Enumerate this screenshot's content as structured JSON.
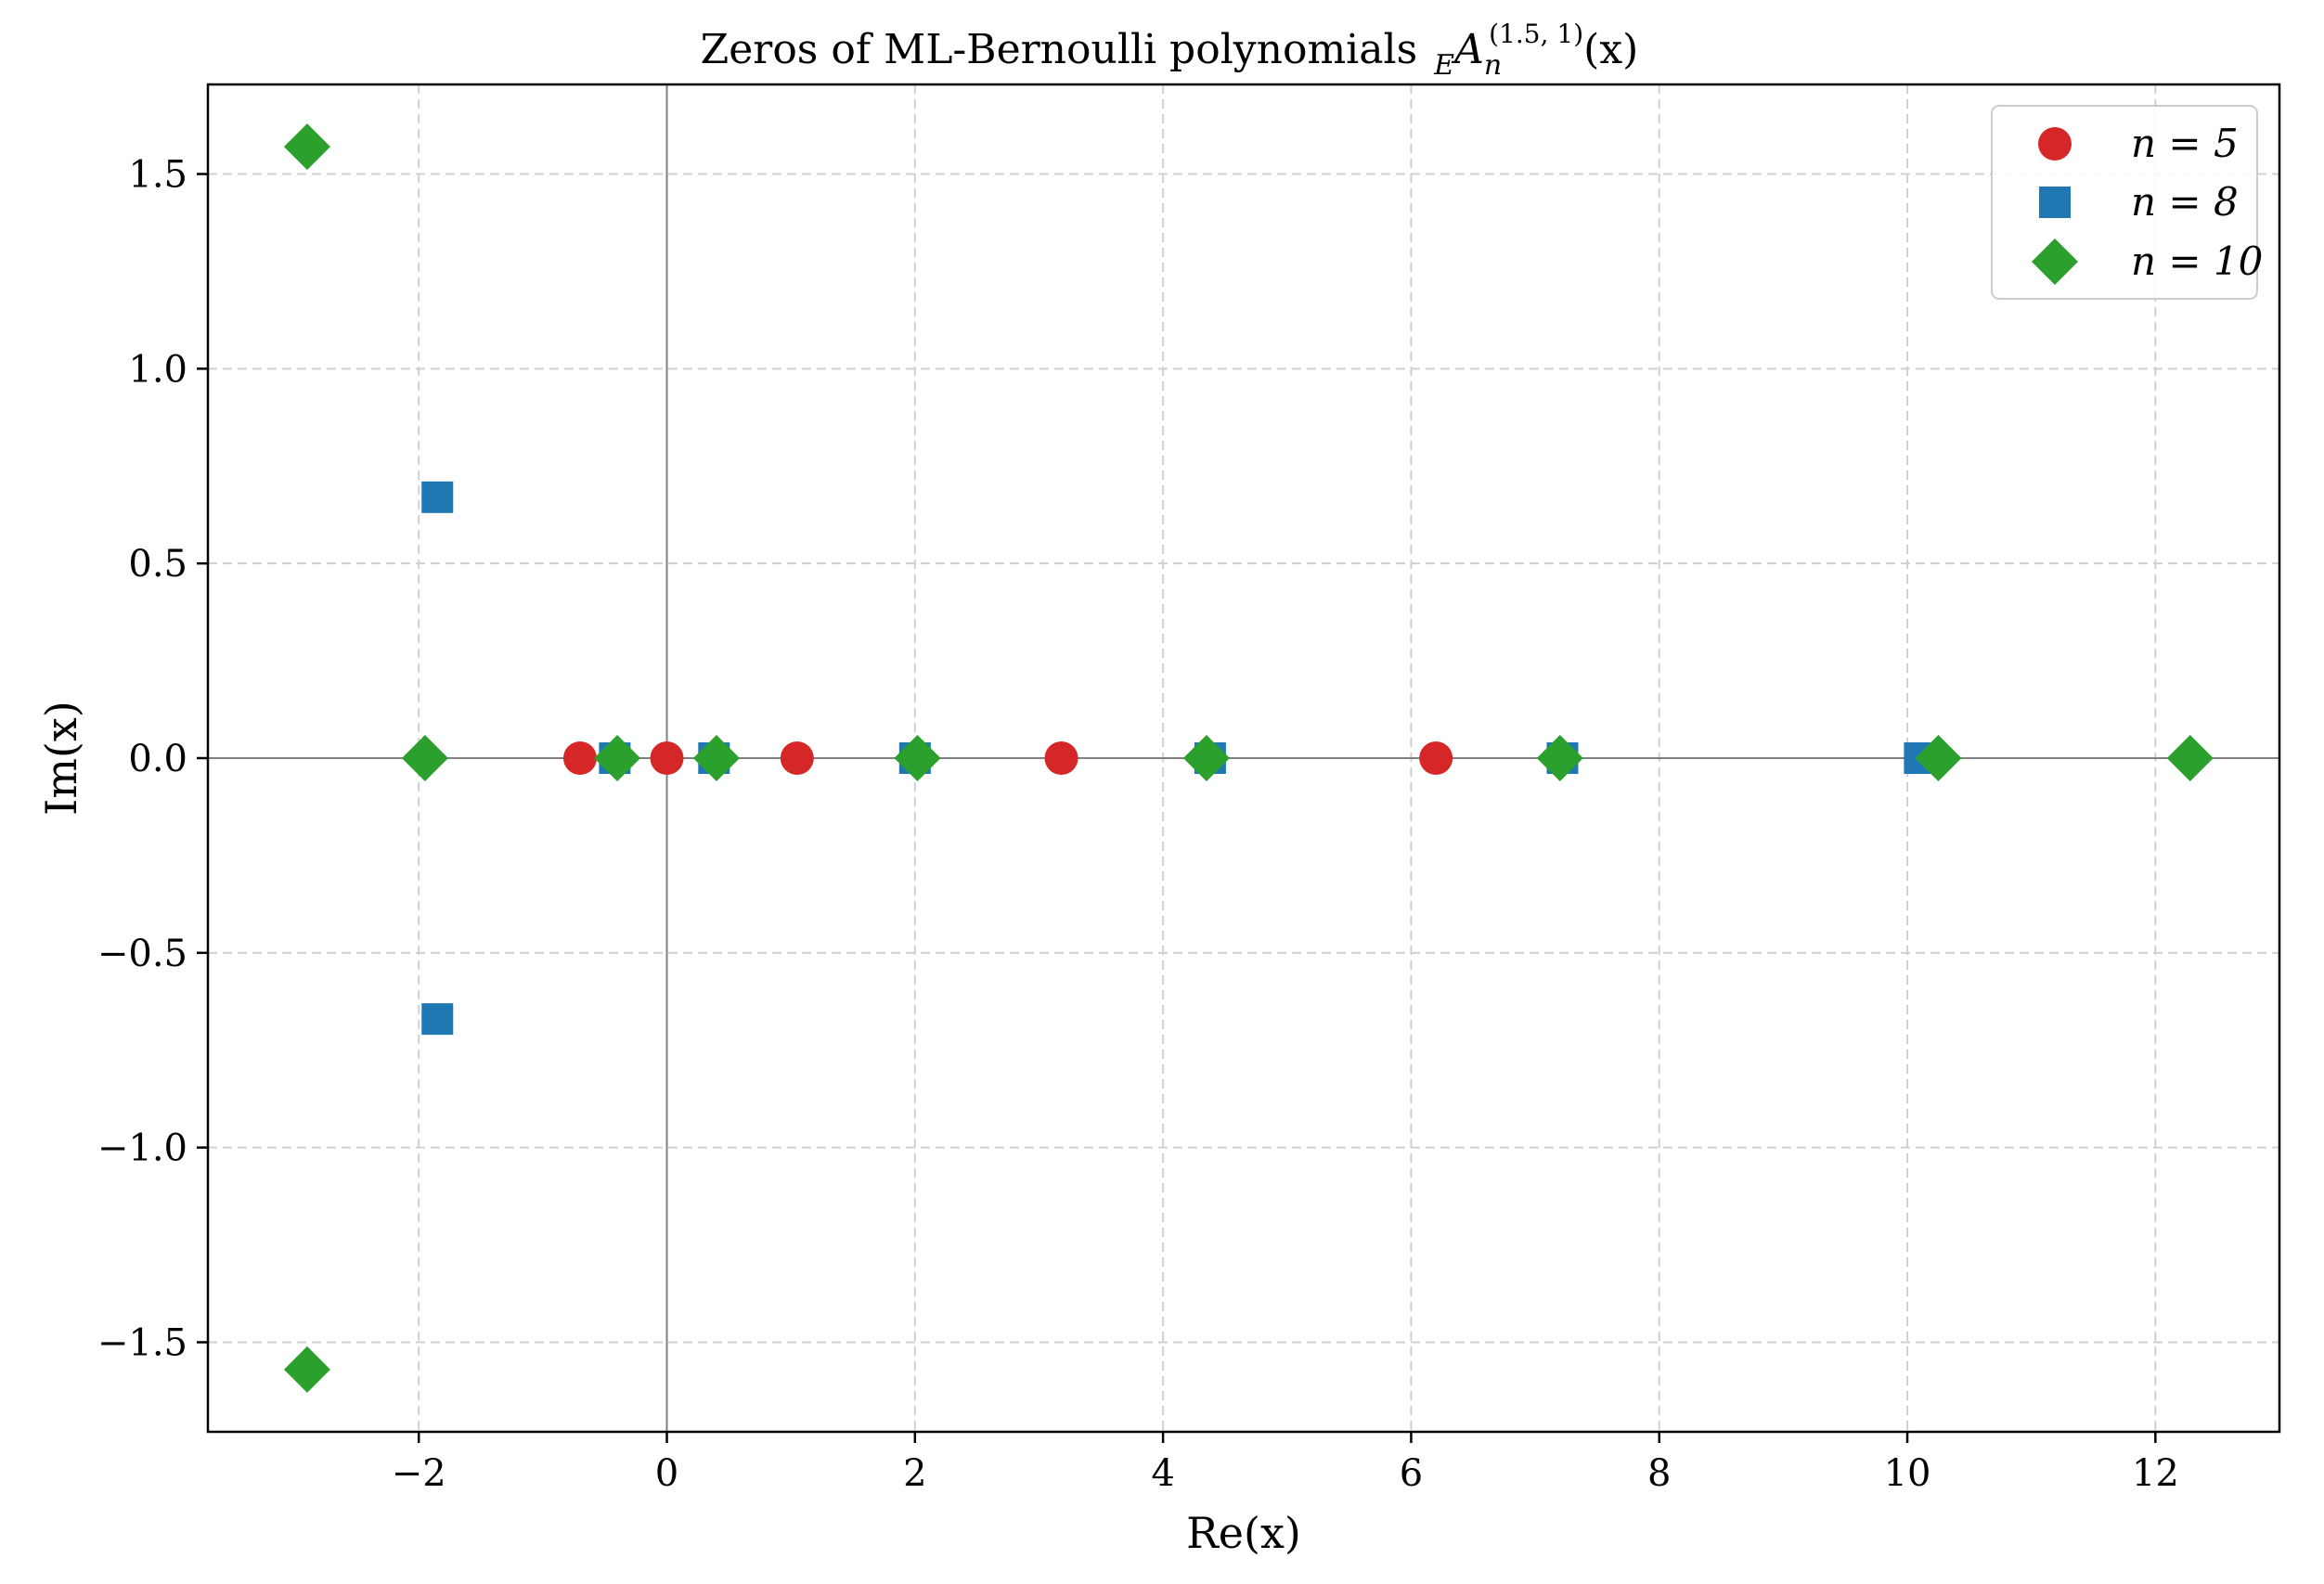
{
  "chart_data": {
    "type": "scatter",
    "title": "Zeros of ML-Bernoulli polynomials  ₑAₙ⁽¹·⁵˒ ¹⁾(x)",
    "title_parts": {
      "prefix": "Zeros of ML-Bernoulli polynomials",
      "subscript_left": "E",
      "letter": "A",
      "subscript": "n",
      "superscript": "(1.5, 1)",
      "argument": "(x)"
    },
    "xlabel": "Re(x)",
    "ylabel": "Im(x)",
    "xlim": [
      -3.7,
      13.0
    ],
    "ylim": [
      -1.73,
      1.73
    ],
    "xticks": [
      -2,
      0,
      2,
      4,
      6,
      8,
      10,
      12
    ],
    "xtick_labels": [
      "−2",
      "0",
      "2",
      "4",
      "6",
      "8",
      "10",
      "12"
    ],
    "yticks": [
      -1.5,
      -1.0,
      -0.5,
      0.0,
      0.5,
      1.0,
      1.5
    ],
    "ytick_labels": [
      "−1.5",
      "−1.0",
      "−0.5",
      "0.0",
      "0.5",
      "1.0",
      "1.5"
    ],
    "grid": true,
    "legend_position": "top-right",
    "reference_lines": {
      "x": 0,
      "y": 0
    },
    "series": [
      {
        "name": "n = 5",
        "marker": "circle",
        "color": "#d62728",
        "points": [
          {
            "x": -0.7,
            "y": 0
          },
          {
            "x": 0.0,
            "y": 0
          },
          {
            "x": 1.05,
            "y": 0
          },
          {
            "x": 3.18,
            "y": 0
          },
          {
            "x": 6.2,
            "y": 0
          }
        ]
      },
      {
        "name": "n = 8",
        "marker": "square",
        "color": "#1f77b4",
        "points": [
          {
            "x": -1.85,
            "y": 0.67
          },
          {
            "x": -1.85,
            "y": -0.67
          },
          {
            "x": -0.42,
            "y": 0
          },
          {
            "x": 0.38,
            "y": 0
          },
          {
            "x": 2.0,
            "y": 0
          },
          {
            "x": 4.38,
            "y": 0
          },
          {
            "x": 7.22,
            "y": 0
          },
          {
            "x": 10.1,
            "y": 0
          }
        ]
      },
      {
        "name": "n = 10",
        "marker": "diamond",
        "color": "#2ca02c",
        "points": [
          {
            "x": -2.9,
            "y": 1.57
          },
          {
            "x": -2.9,
            "y": -1.57
          },
          {
            "x": -1.95,
            "y": 0
          },
          {
            "x": -0.4,
            "y": 0
          },
          {
            "x": 0.4,
            "y": 0
          },
          {
            "x": 2.02,
            "y": 0
          },
          {
            "x": 4.35,
            "y": 0
          },
          {
            "x": 7.2,
            "y": 0
          },
          {
            "x": 10.25,
            "y": 0
          },
          {
            "x": 12.28,
            "y": 0
          }
        ]
      }
    ]
  }
}
